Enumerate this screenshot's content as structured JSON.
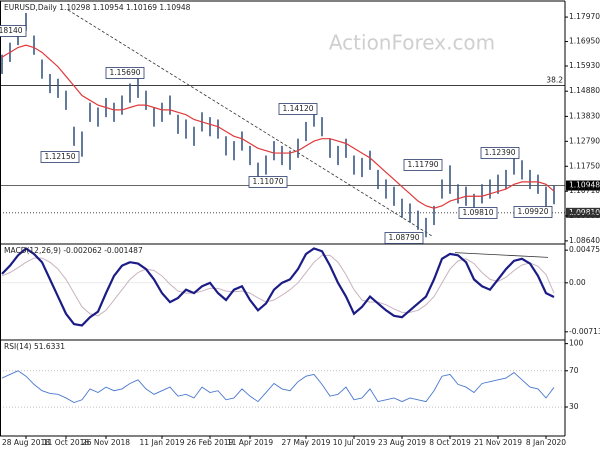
{
  "chart_data": {
    "type": "ohlc",
    "title": "EURUSD,Daily  1.10298 1.10954 1.10169 1.10948",
    "watermark": "ActionForex.com",
    "categories": [
      null,
      null,
      null,
      "28 Aug 2018",
      null,
      null,
      null,
      null,
      "11 Oct 2018",
      null,
      null,
      null,
      null,
      "26 Nov 2018",
      null,
      null,
      null,
      null,
      null,
      null,
      "11 Jan 2019",
      null,
      null,
      null,
      null,
      null,
      "26 Feb 2019",
      null,
      null,
      null,
      null,
      "11 Apr 2019",
      null,
      null,
      null,
      null,
      null,
      null,
      "27 May 2019",
      null,
      null,
      null,
      null,
      null,
      "10 Jul 2019",
      null,
      null,
      null,
      null,
      null,
      "23 Aug 2019",
      null,
      null,
      null,
      null,
      null,
      "8 Oct 2019",
      null,
      null,
      null,
      null,
      null,
      "21 Nov 2019",
      null,
      null,
      null,
      null,
      null,
      "8 Jan 2020",
      null
    ],
    "high": [
      1.164,
      1.169,
      1.176,
      1.1814,
      1.172,
      1.162,
      1.156,
      1.154,
      1.149,
      1.134,
      1.132,
      1.144,
      1.142,
      1.146,
      1.144,
      1.147,
      1.152,
      1.1569,
      1.149,
      1.142,
      1.144,
      1.147,
      1.139,
      1.137,
      1.134,
      1.14,
      1.138,
      1.137,
      1.13,
      1.128,
      1.132,
      1.126,
      1.119,
      1.122,
      1.128,
      1.126,
      1.124,
      1.129,
      1.136,
      1.1412,
      1.138,
      1.129,
      1.126,
      1.129,
      1.122,
      1.121,
      1.124,
      1.116,
      1.112,
      1.109,
      1.104,
      1.102,
      1.099,
      1.096,
      1.101,
      1.112,
      1.1179,
      1.11,
      1.109,
      1.106,
      1.11,
      1.112,
      1.114,
      1.116,
      1.1239,
      1.12,
      1.116,
      1.114,
      1.109,
      1.10954
    ],
    "low": [
      1.156,
      1.161,
      1.168,
      1.174,
      1.164,
      1.154,
      1.148,
      1.146,
      1.141,
      1.126,
      1.1215,
      1.136,
      1.134,
      1.138,
      1.136,
      1.139,
      1.144,
      1.146,
      1.141,
      1.134,
      1.136,
      1.139,
      1.131,
      1.129,
      1.126,
      1.132,
      1.13,
      1.129,
      1.122,
      1.12,
      1.124,
      1.118,
      1.1107,
      1.114,
      1.12,
      1.118,
      1.116,
      1.121,
      1.128,
      1.134,
      1.13,
      1.121,
      1.118,
      1.121,
      1.114,
      1.113,
      1.116,
      1.108,
      1.104,
      1.101,
      1.096,
      1.094,
      1.091,
      1.0879,
      1.093,
      1.104,
      1.106,
      1.102,
      1.101,
      1.0981,
      1.102,
      1.104,
      1.106,
      1.108,
      1.114,
      1.112,
      1.108,
      1.106,
      1.0992,
      1.10169
    ],
    "bar_color": "#3b5a84",
    "ma": {
      "color": "#e0393b",
      "values": [
        1.163,
        1.165,
        1.167,
        1.168,
        1.167,
        1.165,
        1.162,
        1.159,
        1.155,
        1.151,
        1.147,
        1.145,
        1.143,
        1.142,
        1.141,
        1.141,
        1.142,
        1.143,
        1.143,
        1.142,
        1.141,
        1.141,
        1.14,
        1.139,
        1.137,
        1.136,
        1.135,
        1.134,
        1.132,
        1.13,
        1.129,
        1.127,
        1.125,
        1.124,
        1.123,
        1.123,
        1.123,
        1.124,
        1.126,
        1.128,
        1.129,
        1.129,
        1.128,
        1.127,
        1.125,
        1.123,
        1.121,
        1.118,
        1.115,
        1.112,
        1.109,
        1.106,
        1.103,
        1.101,
        1.1,
        1.101,
        1.103,
        1.104,
        1.105,
        1.105,
        1.105,
        1.106,
        1.107,
        1.108,
        1.11,
        1.111,
        1.111,
        1.111,
        1.11,
        1.1071
      ]
    },
    "ylim": [
      1.0851,
      1.1864
    ],
    "yticks": [
      {
        "value": 1.1797,
        "label": "1.17970"
      },
      {
        "value": 1.1695,
        "label": "1.16950"
      },
      {
        "value": 1.1593,
        "label": "1.15930"
      },
      {
        "value": 1.1488,
        "label": "1.14880"
      },
      {
        "value": 1.1383,
        "label": "1.13830"
      },
      {
        "value": 1.1279,
        "label": "1.12790"
      },
      {
        "value": 1.1175,
        "label": "1.11750"
      },
      {
        "value": 1.1071,
        "label": "1.10710"
      },
      {
        "value": 1.0968,
        "label": "1.09680"
      },
      {
        "value": 1.0864,
        "label": "1.08640"
      }
    ],
    "annotations": [
      {
        "value": 1.1814,
        "label": "1.18140"
      },
      {
        "value": 1.1569,
        "label": "1.15690"
      },
      {
        "value": 1.1215,
        "label": "1.12150"
      },
      {
        "value": 1.1412,
        "label": "1.14120"
      },
      {
        "value": 1.1107,
        "label": "1.11070"
      },
      {
        "value": 1.0879,
        "label": "1.08790"
      },
      {
        "value": 1.1179,
        "label": "1.11790"
      },
      {
        "value": 1.0981,
        "label": "1.09810"
      },
      {
        "value": 1.1239,
        "label": "1.12390"
      },
      {
        "value": 1.0992,
        "label": "1.09920"
      }
    ],
    "price_lines": [
      {
        "value": 1.10948,
        "label": "1.10948",
        "style": "solid"
      },
      {
        "value": 1.0981,
        "label": "1.09810",
        "style": "dotted"
      }
    ],
    "fib_level": {
      "value": 1.1512,
      "label": "38.2"
    },
    "macd": {
      "title": "MACD(12,26,9) -0.002062 -0.001487",
      "ylim": [
        -0.00832,
        0.00565
      ],
      "yticks": [
        {
          "value": 0.004756,
          "label": "0.004756"
        },
        {
          "value": 0,
          "label": "0.00"
        },
        {
          "value": -0.00713,
          "label": "-0.00713"
        }
      ],
      "series": [
        {
          "color": "#1c1c86",
          "values": [
            0.0013,
            0.0025,
            0.004,
            0.005,
            0.0042,
            0.003,
            0.0005,
            -0.002,
            -0.0045,
            -0.006,
            -0.0062,
            -0.005,
            -0.0042,
            -0.0015,
            0.001,
            0.0025,
            0.003,
            0.0028,
            0.002,
            0.0005,
            -0.0015,
            -0.0028,
            -0.0022,
            -0.001,
            -0.0015,
            -0.0005,
            0.0,
            -0.0015,
            -0.0025,
            -0.001,
            -0.0005,
            -0.0025,
            -0.004,
            -0.003,
            -0.001,
            0.0,
            0.0005,
            0.002,
            0.0042,
            0.005,
            0.0046,
            0.0025,
            0.0,
            -0.002,
            -0.0045,
            -0.0035,
            -0.002,
            -0.003,
            -0.004,
            -0.0048,
            -0.005,
            -0.004,
            -0.003,
            -0.002,
            0.0005,
            0.0035,
            0.0042,
            0.004,
            0.003,
            0.0005,
            -0.0005,
            -0.001,
            0.0005,
            0.002,
            0.0032,
            0.0035,
            0.0028,
            0.001,
            -0.0015,
            -0.002062
          ]
        },
        {
          "color": "#c9b3bf",
          "values": [
            0.001,
            0.0015,
            0.0022,
            0.003,
            0.0036,
            0.0036,
            0.003,
            0.002,
            0.0005,
            -0.0015,
            -0.0035,
            -0.0045,
            -0.0048,
            -0.004,
            -0.0025,
            -0.001,
            0.0005,
            0.0015,
            0.002,
            0.0018,
            0.001,
            -0.0002,
            -0.0012,
            -0.0015,
            -0.0015,
            -0.0012,
            -0.0008,
            -0.0008,
            -0.0012,
            -0.0013,
            -0.0012,
            -0.0015,
            -0.0022,
            -0.0028,
            -0.0025,
            -0.0018,
            -0.001,
            0.0,
            0.0015,
            0.003,
            0.004,
            0.004,
            0.003,
            0.0012,
            -0.001,
            -0.0025,
            -0.0028,
            -0.0028,
            -0.0032,
            -0.0038,
            -0.0043,
            -0.0043,
            -0.004,
            -0.0032,
            -0.002,
            0.0,
            0.002,
            0.0032,
            0.0035,
            0.0028,
            0.0015,
            0.0005,
            0.0002,
            0.0008,
            0.0018,
            0.0026,
            0.0029,
            0.0024,
            0.0012,
            -0.001487
          ]
        }
      ],
      "trendline": [
        0.0044,
        0.0037
      ]
    },
    "rsi": {
      "title": "RSI(14) 51.6331",
      "ylim": [
        -2,
        104
      ],
      "yticks": [
        100,
        70,
        30
      ],
      "levels": [
        70,
        30
      ],
      "color": "#4a78d0",
      "values": [
        62,
        66,
        70,
        64,
        55,
        48,
        45,
        44,
        40,
        35,
        38,
        50,
        46,
        52,
        48,
        50,
        56,
        60,
        50,
        44,
        48,
        52,
        42,
        44,
        40,
        52,
        46,
        48,
        38,
        40,
        50,
        42,
        36,
        46,
        56,
        50,
        48,
        58,
        64,
        66,
        55,
        42,
        44,
        52,
        38,
        40,
        50,
        36,
        38,
        40,
        36,
        40,
        38,
        36,
        48,
        64,
        66,
        55,
        52,
        46,
        56,
        58,
        60,
        62,
        68,
        60,
        52,
        50,
        40,
        51.6331
      ]
    }
  }
}
